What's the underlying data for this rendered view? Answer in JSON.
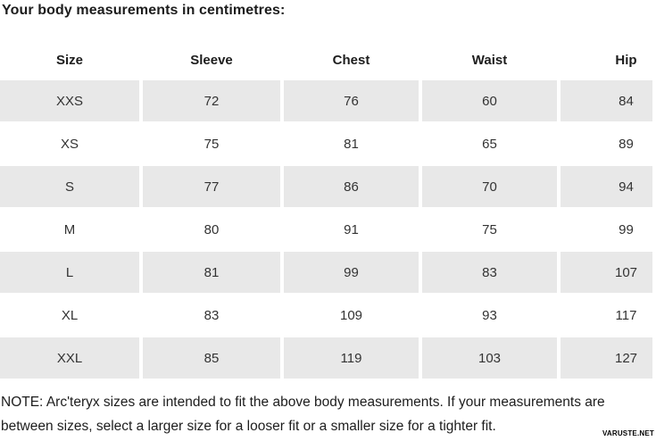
{
  "title": "Your body measurements in centimetres:",
  "table": {
    "columns": [
      "Size",
      "Sleeve",
      "Chest",
      "Waist",
      "Hip"
    ],
    "rows": [
      [
        "XXS",
        "72",
        "76",
        "60",
        "84"
      ],
      [
        "XS",
        "75",
        "81",
        "65",
        "89"
      ],
      [
        "S",
        "77",
        "86",
        "70",
        "94"
      ],
      [
        "M",
        "80",
        "91",
        "75",
        "99"
      ],
      [
        "L",
        "81",
        "99",
        "83",
        "107"
      ],
      [
        "XL",
        "83",
        "109",
        "93",
        "117"
      ],
      [
        "XXL",
        "85",
        "119",
        "103",
        "127"
      ]
    ]
  },
  "note_lines": [
    "NOTE: Arc'teryx sizes are intended to fit the above body measurements. If your measurements are",
    "between sizes, select a larger size for a looser fit or a smaller size for a tighter fit."
  ],
  "watermark": "VARUSTE.NET",
  "colors": {
    "row_alt_background": "#e8e8e8",
    "text": "#1d1d1d",
    "cell_text": "#333333"
  },
  "chart_data": {
    "type": "table",
    "title": "Your body measurements in centimetres:",
    "columns": [
      "Size",
      "Sleeve",
      "Chest",
      "Waist",
      "Hip"
    ],
    "rows": [
      {
        "size": "XXS",
        "sleeve": 72,
        "chest": 76,
        "waist": 60,
        "hip": 84
      },
      {
        "size": "XS",
        "sleeve": 75,
        "chest": 81,
        "waist": 65,
        "hip": 89
      },
      {
        "size": "S",
        "sleeve": 77,
        "chest": 86,
        "waist": 70,
        "hip": 94
      },
      {
        "size": "M",
        "sleeve": 80,
        "chest": 91,
        "waist": 75,
        "hip": 99
      },
      {
        "size": "L",
        "sleeve": 81,
        "chest": 99,
        "waist": 83,
        "hip": 107
      },
      {
        "size": "XL",
        "sleeve": 83,
        "chest": 109,
        "waist": 93,
        "hip": 117
      },
      {
        "size": "XXL",
        "sleeve": 85,
        "chest": 119,
        "waist": 103,
        "hip": 127
      }
    ],
    "layout": {
      "striped_rows": true,
      "stripe_color": "#e8e8e8",
      "cell_alignment": "center"
    }
  }
}
